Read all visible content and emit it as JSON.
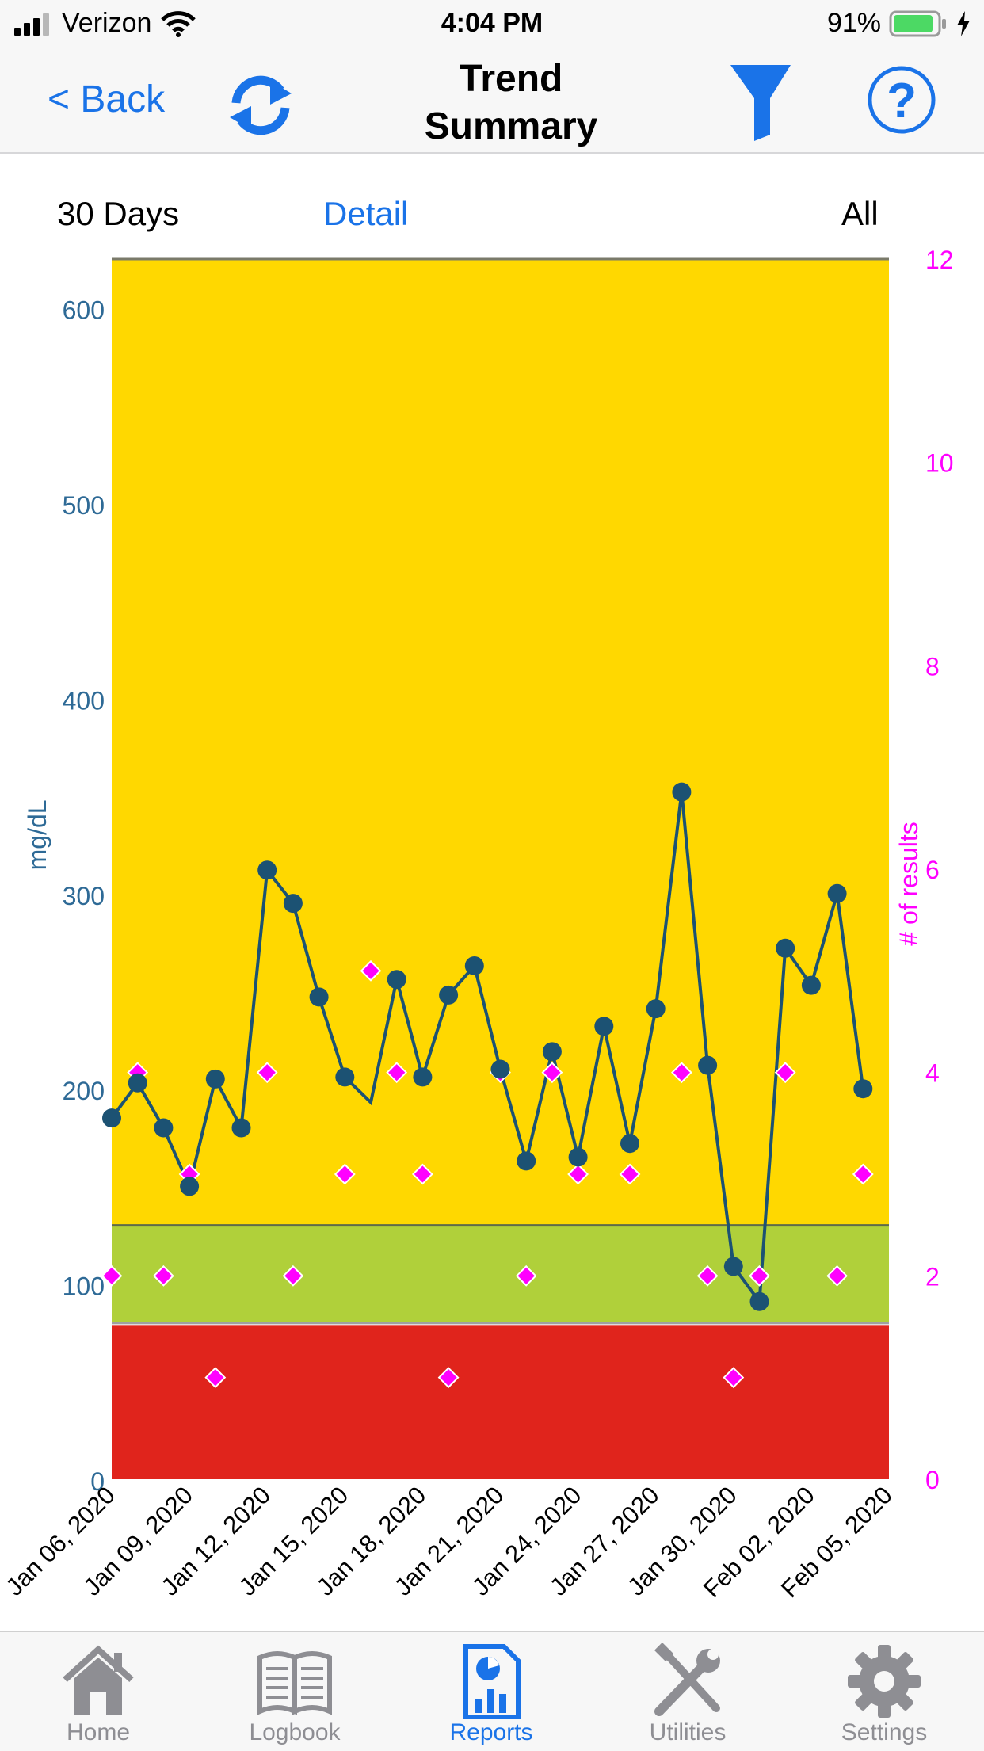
{
  "status_bar": {
    "carrier": "Verizon",
    "time": "4:04 PM",
    "battery_percent": "91%",
    "battery_level": 0.91,
    "icons": [
      "signal-icon",
      "wifi-icon",
      "battery-icon",
      "charging-icon"
    ]
  },
  "nav": {
    "back_label": "< Back",
    "title_line1": "Trend",
    "title_line2": "Summary",
    "icons": [
      "refresh-icon",
      "filter-icon",
      "help-icon"
    ],
    "accent_color": "#1a73e8"
  },
  "range_bar": {
    "period_label": "30 Days",
    "detail_label": "Detail",
    "scope_label": "All"
  },
  "chart_data": {
    "type": "line",
    "left_axis_label": "mg/dL",
    "right_axis_label": "# of results",
    "left_ticks": [
      "0",
      "100",
      "200",
      "300",
      "400",
      "500",
      "600"
    ],
    "right_ticks": [
      "0",
      "2",
      "4",
      "6",
      "8",
      "10",
      "12"
    ],
    "ylim_left": [
      0,
      625
    ],
    "ylim_right": [
      0,
      12
    ],
    "x_range": [
      "2020-01-06",
      "2020-02-05"
    ],
    "x_tick_labels": [
      "Jan 06, 2020",
      "Jan 09, 2020",
      "Jan 12, 2020",
      "Jan 15, 2020",
      "Jan 18, 2020",
      "Jan 21, 2020",
      "Jan 24, 2020",
      "Jan 27, 2020",
      "Jan 30, 2020",
      "Feb 02, 2020",
      "Feb 05, 2020"
    ],
    "bands": [
      {
        "name": "low",
        "from": 0,
        "to": 79,
        "color": "#e0241c"
      },
      {
        "name": "target",
        "from": 80,
        "to": 130,
        "color": "#b0d03a"
      },
      {
        "name": "high",
        "from": 130,
        "to": 625,
        "color": "#ffd800"
      }
    ],
    "glucose_series": {
      "color": "#1c5273",
      "dates": [
        "2020-01-06",
        "2020-01-07",
        "2020-01-08",
        "2020-01-09",
        "2020-01-10",
        "2020-01-11",
        "2020-01-12",
        "2020-01-13",
        "2020-01-14",
        "2020-01-15",
        "2020-01-16",
        "2020-01-17",
        "2020-01-18",
        "2020-01-19",
        "2020-01-20",
        "2020-01-21",
        "2020-01-22",
        "2020-01-23",
        "2020-01-24",
        "2020-01-25",
        "2020-01-26",
        "2020-01-27",
        "2020-01-28",
        "2020-01-29",
        "2020-01-30",
        "2020-01-31",
        "2020-02-01",
        "2020-02-02",
        "2020-02-03",
        "2020-02-04",
        "2020-02-05"
      ],
      "values": [
        185,
        203,
        180,
        150,
        205,
        180,
        312,
        295,
        247,
        206,
        193,
        256,
        206,
        248,
        263,
        210,
        163,
        219,
        165,
        232,
        172,
        241,
        352,
        212,
        109,
        91,
        272,
        253,
        300,
        200,
        null
      ],
      "marker_shown": [
        true,
        true,
        true,
        true,
        true,
        true,
        true,
        true,
        true,
        true,
        false,
        true,
        true,
        true,
        true,
        true,
        true,
        true,
        true,
        true,
        true,
        true,
        true,
        true,
        true,
        true,
        true,
        true,
        true,
        true,
        false
      ]
    },
    "count_series": {
      "color": "#ff00ff",
      "dates": [
        "2020-01-06",
        "2020-01-07",
        "2020-01-08",
        "2020-01-09",
        "2020-01-10",
        "2020-01-12",
        "2020-01-13",
        "2020-01-15",
        "2020-01-16",
        "2020-01-17",
        "2020-01-18",
        "2020-01-19",
        "2020-01-21",
        "2020-01-22",
        "2020-01-23",
        "2020-01-24",
        "2020-01-26",
        "2020-01-28",
        "2020-01-29",
        "2020-01-30",
        "2020-01-31",
        "2020-02-01",
        "2020-02-03",
        "2020-02-04",
        "2020-02-05"
      ],
      "values": [
        2,
        4,
        2,
        3,
        1,
        4,
        2,
        3,
        5,
        4,
        3,
        1,
        4,
        2,
        4,
        3,
        3,
        4,
        2,
        1,
        2,
        4,
        2,
        3,
        null
      ]
    }
  },
  "tab_bar": {
    "tabs": [
      {
        "label": "Home",
        "icon": "home-icon",
        "active": false
      },
      {
        "label": "Logbook",
        "icon": "logbook-icon",
        "active": false
      },
      {
        "label": "Reports",
        "icon": "reports-icon",
        "active": true
      },
      {
        "label": "Utilities",
        "icon": "utilities-icon",
        "active": false
      },
      {
        "label": "Settings",
        "icon": "settings-icon",
        "active": false
      }
    ],
    "active_color": "#1a73e8",
    "inactive_color": "#8e8e93"
  }
}
